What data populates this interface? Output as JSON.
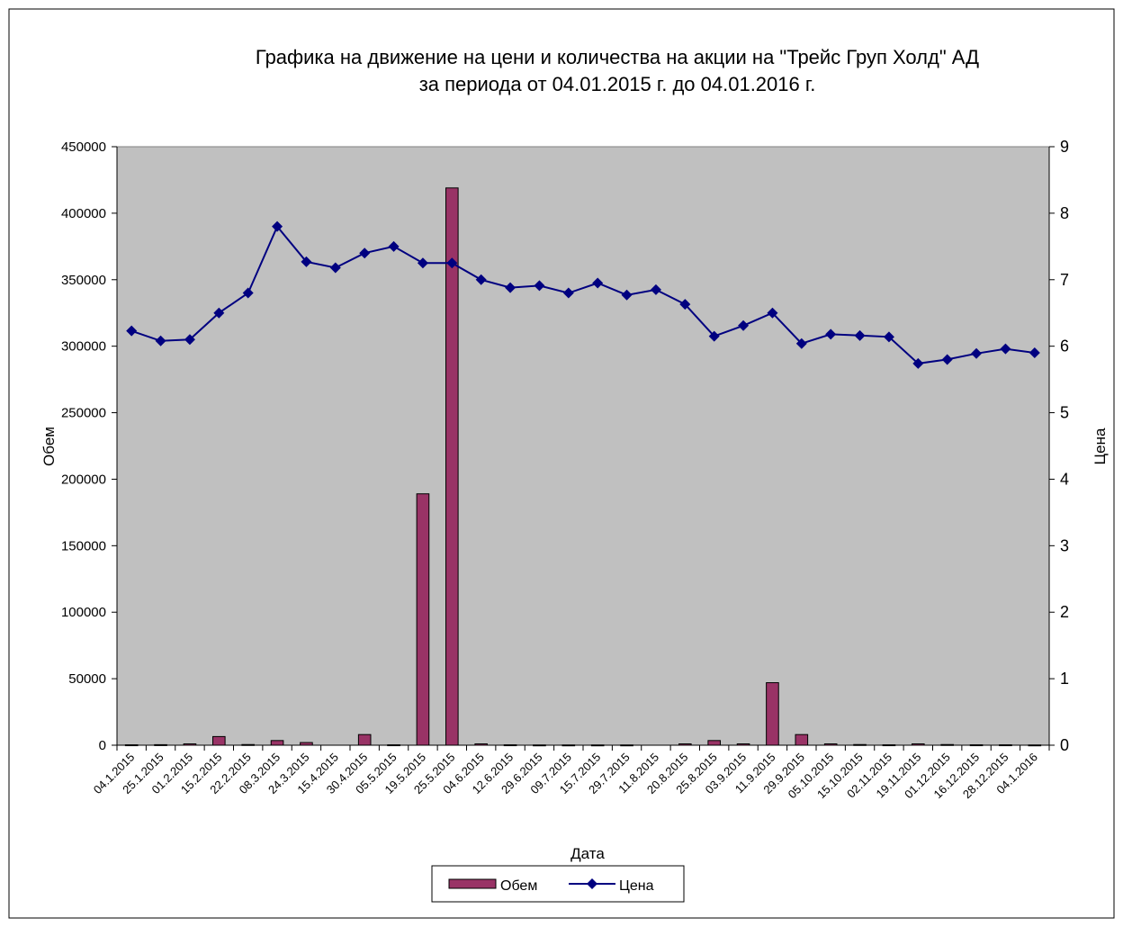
{
  "chart_data": {
    "type": "bar",
    "title_line1": "Графика на движение на цени и количества на акции на \"Трейс Груп Холд\" АД",
    "title_line2": "за периода от 04.01.2015 г.  до 04.01.2016 г.",
    "xlabel": "Дата",
    "ylabel_left": "Обем",
    "ylabel_right": "Цена",
    "ylim_left": [
      0,
      450000
    ],
    "ylim_right": [
      0,
      9
    ],
    "y_ticks_left": [
      "0",
      "50000",
      "100000",
      "150000",
      "200000",
      "250000",
      "300000",
      "350000",
      "400000",
      "450000"
    ],
    "y_ticks_right": [
      "0",
      "1",
      "2",
      "3",
      "4",
      "5",
      "6",
      "7",
      "8",
      "9"
    ],
    "categories": [
      "04.1.2015",
      "25.1.2015",
      "01.2.2015",
      "15.2.2015",
      "22.2.2015",
      "08.3.2015",
      "24.3.2015",
      "15.4.2015",
      "30.4.2015",
      "05.5.2015",
      "19.5.2015",
      "25.5.2015",
      "04.6.2015",
      "12.6.2015",
      "29.6.2015",
      "09.7.2015",
      "15.7.2015",
      "29.7.2015",
      "11.8.2015",
      "20.8.2015",
      "25.8.2015",
      "03.9.2015",
      "11.9.2015",
      "29.9.2015",
      "05.10.2015",
      "15.10.2015",
      "02.11.2015",
      "19.11.2015",
      "01.12.2015",
      "16.12.2015",
      "28.12.2015",
      "04.1.2016"
    ],
    "series": [
      {
        "name": "Обем",
        "type": "bar",
        "axis": "left",
        "color": "#993366",
        "values": [
          300,
          400,
          1000,
          6500,
          500,
          3500,
          2000,
          0,
          8000,
          300,
          189000,
          419000,
          1000,
          300,
          200,
          200,
          200,
          200,
          0,
          1000,
          3500,
          1000,
          47000,
          8000,
          1000,
          500,
          300,
          1000,
          500,
          300,
          300,
          200
        ]
      },
      {
        "name": "Цена",
        "type": "line",
        "axis": "right",
        "color": "#000080",
        "values": [
          6.23,
          6.08,
          6.1,
          6.5,
          6.8,
          7.8,
          7.27,
          7.18,
          7.4,
          7.5,
          7.25,
          7.25,
          7.0,
          6.88,
          6.91,
          6.8,
          6.95,
          6.77,
          6.85,
          6.63,
          6.15,
          6.31,
          6.5,
          6.04,
          6.18,
          6.16,
          6.14,
          5.74,
          5.8,
          5.89,
          5.96,
          5.9
        ]
      }
    ],
    "legend": {
      "position": "bottom"
    },
    "grid": false,
    "plot_background": "#c0c0c0"
  }
}
